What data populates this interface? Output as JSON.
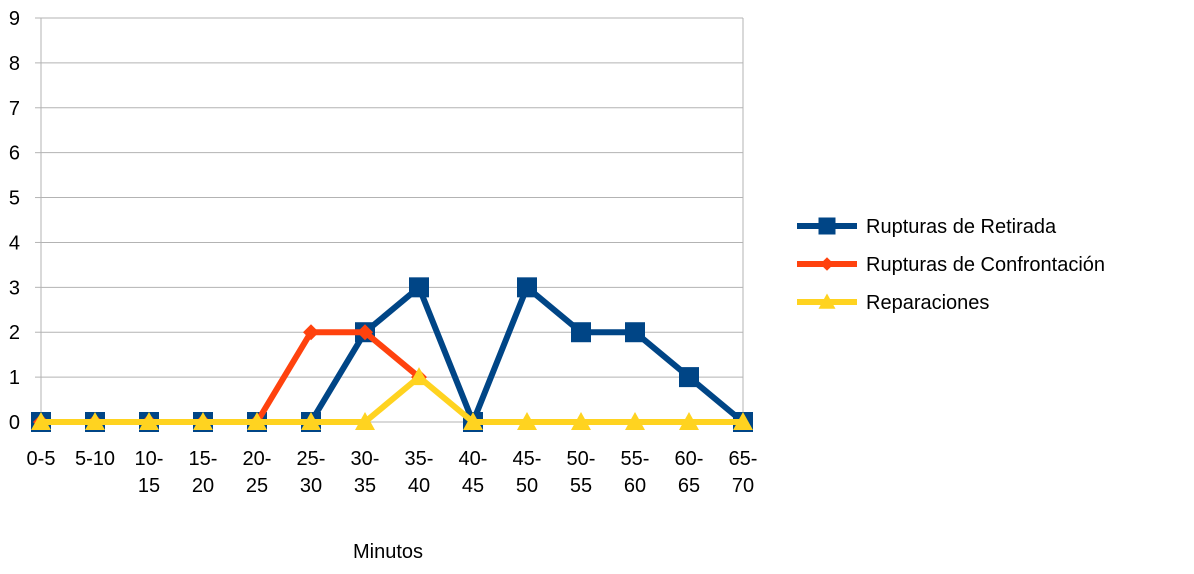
{
  "chart_data": {
    "type": "line",
    "title": "",
    "xlabel": "Minutos",
    "ylabel": "",
    "ylim": [
      0,
      9
    ],
    "yticks": [
      0,
      1,
      2,
      3,
      4,
      5,
      6,
      7,
      8,
      9
    ],
    "grid": true,
    "legend_position": "right",
    "categories": [
      [
        "0-5"
      ],
      [
        "5-10"
      ],
      [
        "10-",
        "15"
      ],
      [
        "15-",
        "20"
      ],
      [
        "20-",
        "25"
      ],
      [
        "25-",
        "30"
      ],
      [
        "30-",
        "35"
      ],
      [
        "35-",
        "40"
      ],
      [
        "40-",
        "45"
      ],
      [
        "45-",
        "50"
      ],
      [
        "50-",
        "55"
      ],
      [
        "55-",
        "60"
      ],
      [
        "60-",
        "65"
      ],
      [
        "65-",
        "70"
      ]
    ],
    "series": [
      {
        "name": "Rupturas de Retirada",
        "color": "#004586",
        "marker": "square",
        "values": [
          0,
          0,
          0,
          0,
          0,
          0,
          2,
          3,
          0,
          3,
          2,
          2,
          1,
          0
        ]
      },
      {
        "name": "Rupturas de Confrontación",
        "color": "#ff420e",
        "marker": "diamond",
        "values": [
          0,
          0,
          0,
          0,
          0,
          2,
          2,
          1,
          null,
          null,
          null,
          null,
          null,
          null
        ]
      },
      {
        "name": "Reparaciones",
        "color": "#ffd320",
        "marker": "triangle",
        "values": [
          0,
          0,
          0,
          0,
          0,
          0,
          0,
          1,
          0,
          0,
          0,
          0,
          0,
          0
        ]
      }
    ]
  }
}
